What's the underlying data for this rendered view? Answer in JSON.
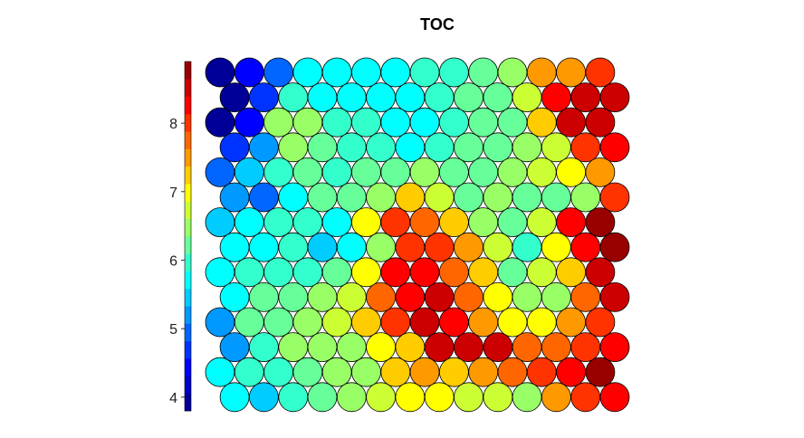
{
  "chart_data": {
    "type": "heatmap",
    "layout": "hexagonal-som",
    "title": "TOC",
    "rows": 14,
    "cols": 14,
    "colorbar": {
      "min": 3.8,
      "max": 8.9,
      "ticks": [
        4,
        5,
        6,
        7,
        8
      ],
      "tick_labels": [
        "4",
        "5",
        "6",
        "7",
        "8"
      ],
      "levels": 20,
      "colormap": "jet-rainbow",
      "position": "left"
    },
    "grid": false,
    "values": [
      [
        3.9,
        4.4,
        5.0,
        5.8,
        5.6,
        5.6,
        5.8,
        5.9,
        6.0,
        6.1,
        6.4,
        7.4,
        7.6,
        8.1
      ],
      [
        4.0,
        4.8,
        5.9,
        5.7,
        5.6,
        5.7,
        5.8,
        5.9,
        6.1,
        6.3,
        6.7,
        8.2,
        8.5,
        8.4
      ],
      [
        3.9,
        4.5,
        6.5,
        6.6,
        6.0,
        5.9,
        5.7,
        5.8,
        6.0,
        6.2,
        6.3,
        7.2,
        8.5,
        8.5
      ],
      [
        4.6,
        5.2,
        6.5,
        6.3,
        6.0,
        6.0,
        5.8,
        5.9,
        6.1,
        6.3,
        6.5,
        6.8,
        8.0,
        8.2
      ],
      [
        4.9,
        5.4,
        6.0,
        6.3,
        6.0,
        6.3,
        6.2,
        6.4,
        6.2,
        6.3,
        6.4,
        6.7,
        7.0,
        7.5
      ],
      [
        5.1,
        5.0,
        5.6,
        6.1,
        6.2,
        6.5,
        7.3,
        6.8,
        6.3,
        6.4,
        6.2,
        6.2,
        6.5,
        8.0
      ],
      [
        5.5,
        5.8,
        5.9,
        6.0,
        5.7,
        7.0,
        7.9,
        7.7,
        7.2,
        6.4,
        6.2,
        6.8,
        8.2,
        8.7
      ],
      [
        5.7,
        5.8,
        5.9,
        5.5,
        5.7,
        6.4,
        7.9,
        8.0,
        7.5,
        6.8,
        6.0,
        7.1,
        8.3,
        8.8
      ],
      [
        5.7,
        5.9,
        5.9,
        6.0,
        6.2,
        7.0,
        8.2,
        8.3,
        7.8,
        7.2,
        6.2,
        6.8,
        7.3,
        8.5
      ],
      [
        5.6,
        6.1,
        6.2,
        6.4,
        6.8,
        7.8,
        8.3,
        8.4,
        7.8,
        7.0,
        6.4,
        6.5,
        7.7,
        8.5
      ],
      [
        5.2,
        6.3,
        6.3,
        6.5,
        6.8,
        7.3,
        8.0,
        8.6,
        8.3,
        7.6,
        7.1,
        6.9,
        7.6,
        8.0
      ],
      [
        5.3,
        6.0,
        6.6,
        6.5,
        6.6,
        7.1,
        7.3,
        8.6,
        8.6,
        8.4,
        7.8,
        7.8,
        8.1,
        8.3
      ],
      [
        5.6,
        5.9,
        6.0,
        6.2,
        6.4,
        6.6,
        7.2,
        7.6,
        7.2,
        7.5,
        7.8,
        8.0,
        8.2,
        8.8
      ],
      [
        5.7,
        5.5,
        5.9,
        6.2,
        6.5,
        6.7,
        7.1,
        6.9,
        6.8,
        6.7,
        6.5,
        7.5,
        8.1,
        8.3
      ]
    ]
  }
}
